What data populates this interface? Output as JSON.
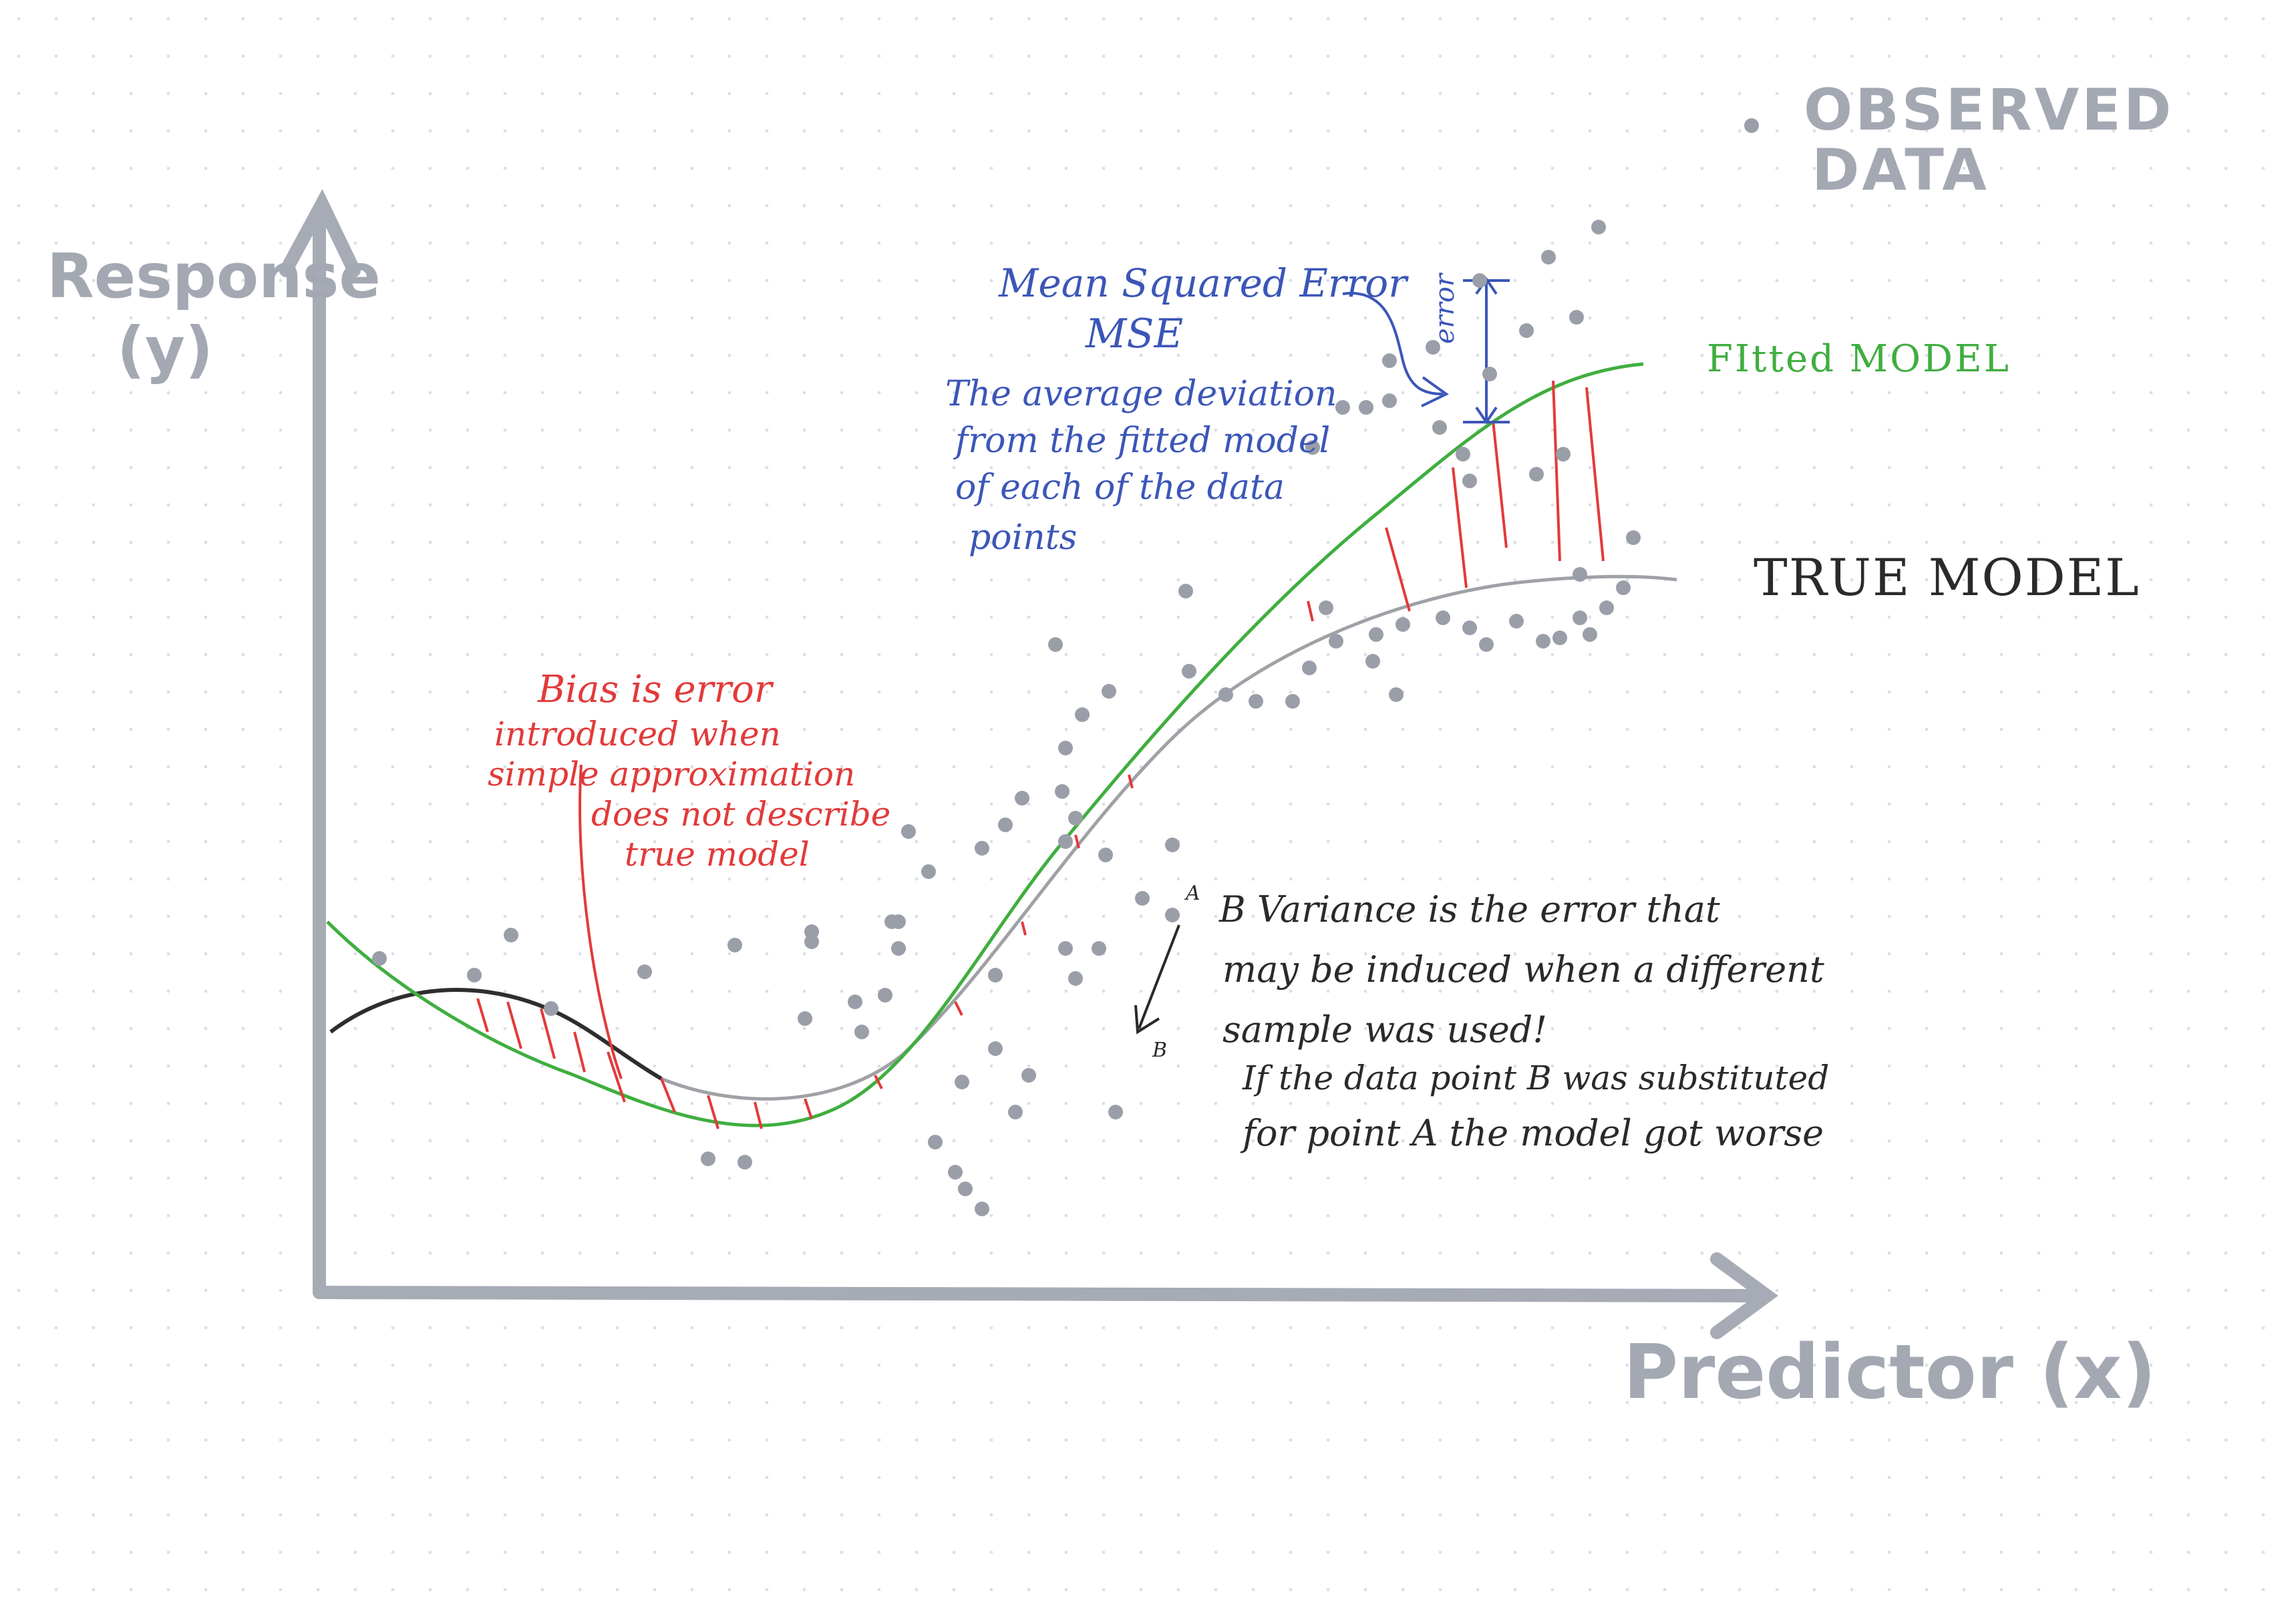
{
  "legend": {
    "dot_label_line1": "OBSERVED",
    "dot_label_line2": "DATA"
  },
  "axes": {
    "y_label_line1": "Response",
    "y_label_line2": "(y)",
    "x_label": "Predictor (x)"
  },
  "curves": {
    "fitted_label": "FItted MODEL",
    "true_label": "TRUE MODEL"
  },
  "mse_note": {
    "title": "Mean Squared Error",
    "abbr": "MSE",
    "line1": "The average deviation",
    "line2": "from the fitted model",
    "line3": "of each of the data",
    "line4": "points",
    "error_tag": "error"
  },
  "bias_note": {
    "line1": "Bias is error",
    "line2": "introduced when",
    "line3": "simple approximation",
    "line4": "does not describe",
    "line5": "true model"
  },
  "variance_note": {
    "line1": "B Variance is the error that",
    "line2": "may be induced when a different",
    "line3": "sample was used!",
    "line4": "If the data point B was substituted",
    "line5": "for point A the model got worse"
  },
  "point_markers": {
    "a": "A",
    "b": "B"
  },
  "colors": {
    "axis": "#a7abb5",
    "dots": "#9a9ea8",
    "fitted": "#3fae3f",
    "true": "#9fa1a6",
    "bias": "#e23a3a",
    "mse": "#3b56b8",
    "ink": "#2a2a2a"
  }
}
